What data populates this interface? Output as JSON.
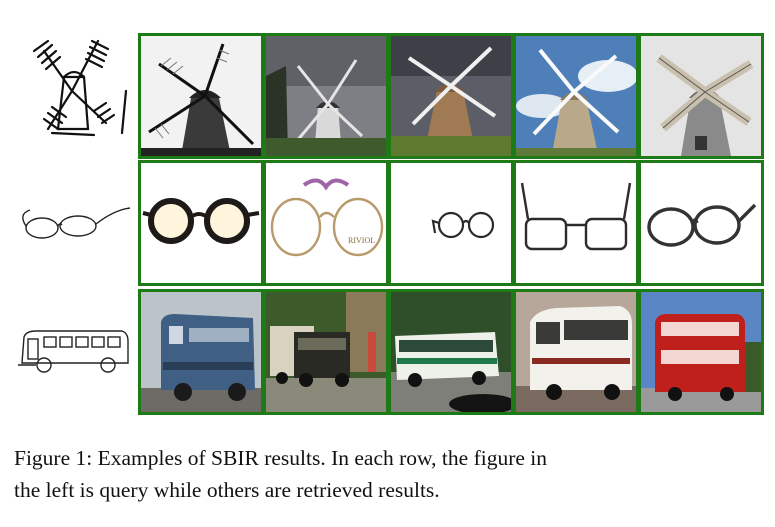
{
  "caption": {
    "line1": "Figure 1: Examples of SBIR results. In each row, the figure in",
    "line2": "the left is query while others are retrieved results."
  },
  "rows": [
    {
      "query": "windmill-sketch",
      "results": [
        "windmill-bw",
        "windmill-dark-sky",
        "windmill-cloudy",
        "windmill-blue-sky",
        "windmill-stone"
      ]
    },
    {
      "query": "glasses-sketch",
      "results": [
        "glasses-round-black",
        "glasses-wire-purple",
        "glasses-small",
        "glasses-rectangular",
        "glasses-sketchy"
      ]
    },
    {
      "query": "bus-sketch",
      "results": [
        "bus-blue-vintage",
        "bus-vintage-pair",
        "bus-green-white",
        "bus-white-coach",
        "bus-red-double-decker"
      ]
    }
  ],
  "colors": {
    "border": "#1e7a16",
    "sky_blue": "#4f7fb8",
    "grass": "#6f8f3a",
    "bus_red": "#c0201c"
  }
}
